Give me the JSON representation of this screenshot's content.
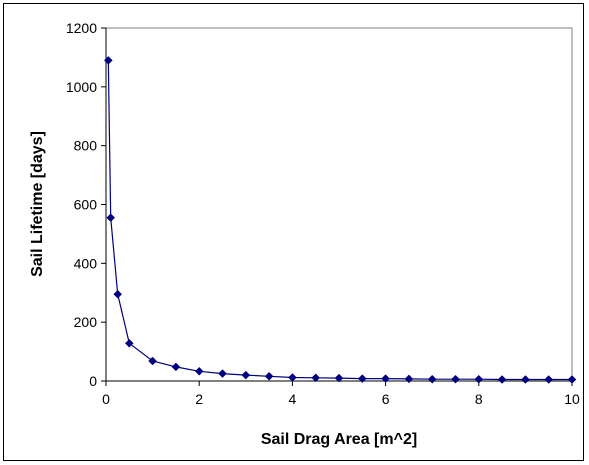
{
  "chart_data": {
    "type": "line",
    "title": "",
    "xlabel": "Sail Drag Area [m^2]",
    "ylabel": "Sail Lifetime [days]",
    "xlim": [
      0,
      10
    ],
    "ylim": [
      0,
      1200
    ],
    "x_ticks": [
      "0",
      "2",
      "4",
      "6",
      "8",
      "10"
    ],
    "y_ticks": [
      "0",
      "200",
      "400",
      "600",
      "800",
      "1000",
      "1200"
    ],
    "grid": false,
    "legend": "none",
    "series": [
      {
        "color": "#000080",
        "marker": "diamond",
        "x": [
          0.05,
          0.1,
          0.25,
          0.5,
          1.0,
          1.5,
          2.0,
          2.5,
          3.0,
          3.5,
          4.0,
          4.5,
          5.0,
          5.5,
          6.0,
          6.5,
          7.0,
          7.5,
          8.0,
          8.5,
          9.0,
          9.5,
          10.0
        ],
        "y": [
          1090,
          555,
          295,
          128,
          68,
          48,
          33,
          25,
          20,
          16,
          12,
          11,
          10,
          8,
          8,
          7,
          6,
          6,
          6,
          5,
          5,
          5,
          5
        ]
      }
    ]
  }
}
